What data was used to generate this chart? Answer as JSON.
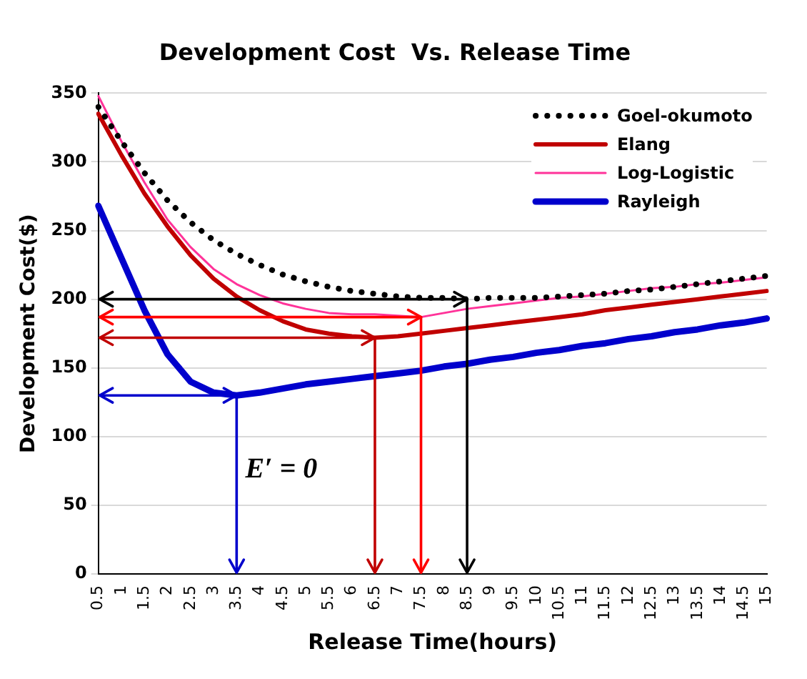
{
  "chart_data": {
    "type": "line",
    "title": "Development Cost  Vs. Release Time",
    "xlabel": "Release Time(hours)",
    "ylabel": "Development Cost($)",
    "categories": [
      "0.5",
      "1",
      "1.5",
      "2",
      "2.5",
      "3",
      "3.5",
      "4",
      "4.5",
      "5",
      "5.5",
      "6",
      "6.5",
      "7",
      "7.5",
      "8",
      "8.5",
      "9",
      "9.5",
      "10",
      "10.5",
      "11",
      "11.5",
      "12",
      "12.5",
      "13",
      "13.5",
      "14",
      "14.5",
      "15"
    ],
    "series": [
      {
        "name": "Goel-okumoto",
        "color": "#000000",
        "line_style": "dotted",
        "values": [
          340,
          315,
          292,
          272,
          256,
          243,
          233,
          225,
          218,
          213,
          209,
          206,
          204,
          202,
          201,
          201,
          200,
          201,
          201,
          201,
          202,
          203,
          204,
          206,
          207,
          209,
          211,
          213,
          215,
          217
        ]
      },
      {
        "name": "Elang",
        "color": "#c00000",
        "line_style": "solid",
        "values": [
          335,
          305,
          277,
          253,
          232,
          215,
          202,
          192,
          184,
          178,
          175,
          173,
          172,
          173,
          175,
          177,
          179,
          181,
          183,
          185,
          187,
          189,
          192,
          194,
          196,
          198,
          200,
          202,
          204,
          206
        ]
      },
      {
        "name": "Log-Logistic",
        "color": "#ff3399",
        "line_style": "solid",
        "values": [
          348,
          315,
          285,
          258,
          238,
          222,
          211,
          203,
          197,
          193,
          190,
          189,
          189,
          188,
          187,
          190,
          193,
          195,
          197,
          199,
          201,
          202,
          204,
          206,
          208,
          209,
          211,
          212,
          214,
          216
        ]
      },
      {
        "name": "Rayleigh",
        "color": "#0000cc",
        "line_style": "solid",
        "values": [
          268,
          230,
          192,
          160,
          140,
          132,
          130,
          132,
          135,
          138,
          140,
          142,
          144,
          146,
          148,
          151,
          153,
          156,
          158,
          161,
          163,
          166,
          168,
          171,
          173,
          176,
          178,
          181,
          183,
          186
        ]
      }
    ],
    "ylim": [
      0,
      350
    ],
    "yticks": [
      0,
      50,
      100,
      150,
      200,
      250,
      300,
      350
    ],
    "grid": "y",
    "legend": "top right",
    "marker": "none",
    "annotations": [
      "E′ = 0"
    ],
    "ref_lines": [
      {
        "axis": "y",
        "value": 200,
        "color": "#000000"
      },
      {
        "axis": "y",
        "value": 187,
        "color": "#ff0000"
      },
      {
        "axis": "y",
        "value": 172,
        "color": "#c00000"
      },
      {
        "axis": "y",
        "value": 130,
        "color": "#0000cc"
      },
      {
        "axis": "x",
        "value": "8.5",
        "color": "#000000"
      },
      {
        "axis": "x",
        "value": "7.5",
        "color": "#ff0000"
      },
      {
        "axis": "x",
        "value": "6.5",
        "color": "#c00000"
      },
      {
        "axis": "x",
        "value": "3.5",
        "color": "#0000cc"
      }
    ]
  }
}
